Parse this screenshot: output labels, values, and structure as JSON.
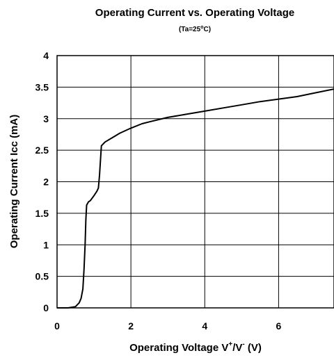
{
  "chart_data": {
    "type": "line",
    "title": "Operating Current vs. Operating Voltage",
    "subtitle_parts": [
      "(Ta=25",
      "o",
      "C)"
    ],
    "xlabel_parts": [
      "Operating Voltage V",
      "+",
      "/V",
      "-",
      " (V)"
    ],
    "ylabel": "Operating Current Icc (mA)",
    "xlim": [
      0,
      7.5
    ],
    "ylim": [
      0,
      4
    ],
    "xticks": [
      0,
      2,
      4,
      6
    ],
    "xtick_labels": [
      "0",
      "2",
      "4",
      "6"
    ],
    "yticks": [
      0,
      0.5,
      1,
      1.5,
      2,
      2.5,
      3,
      3.5,
      4
    ],
    "ytick_labels": [
      "0",
      "0.5",
      "1",
      "1.5",
      "2",
      "2.5",
      "3",
      "3.5",
      "4"
    ],
    "grid": true,
    "series": [
      {
        "color": "#000000",
        "x": [
          0,
          0.3,
          0.5,
          0.6,
          0.65,
          0.7,
          0.73,
          0.76,
          0.78,
          0.8,
          0.85,
          0.9,
          1.0,
          1.08,
          1.12,
          1.15,
          1.2,
          1.3,
          1.5,
          1.7,
          2.0,
          2.3,
          2.5,
          3.0,
          3.5,
          4.0,
          4.5,
          5.0,
          5.5,
          6.0,
          6.5,
          7.0,
          7.5
        ],
        "y": [
          0,
          0,
          0.02,
          0.08,
          0.15,
          0.3,
          0.6,
          1.0,
          1.4,
          1.63,
          1.68,
          1.7,
          1.78,
          1.85,
          1.9,
          2.1,
          2.57,
          2.63,
          2.7,
          2.77,
          2.85,
          2.92,
          2.95,
          3.02,
          3.07,
          3.12,
          3.17,
          3.22,
          3.27,
          3.31,
          3.35,
          3.41,
          3.47
        ]
      }
    ]
  }
}
